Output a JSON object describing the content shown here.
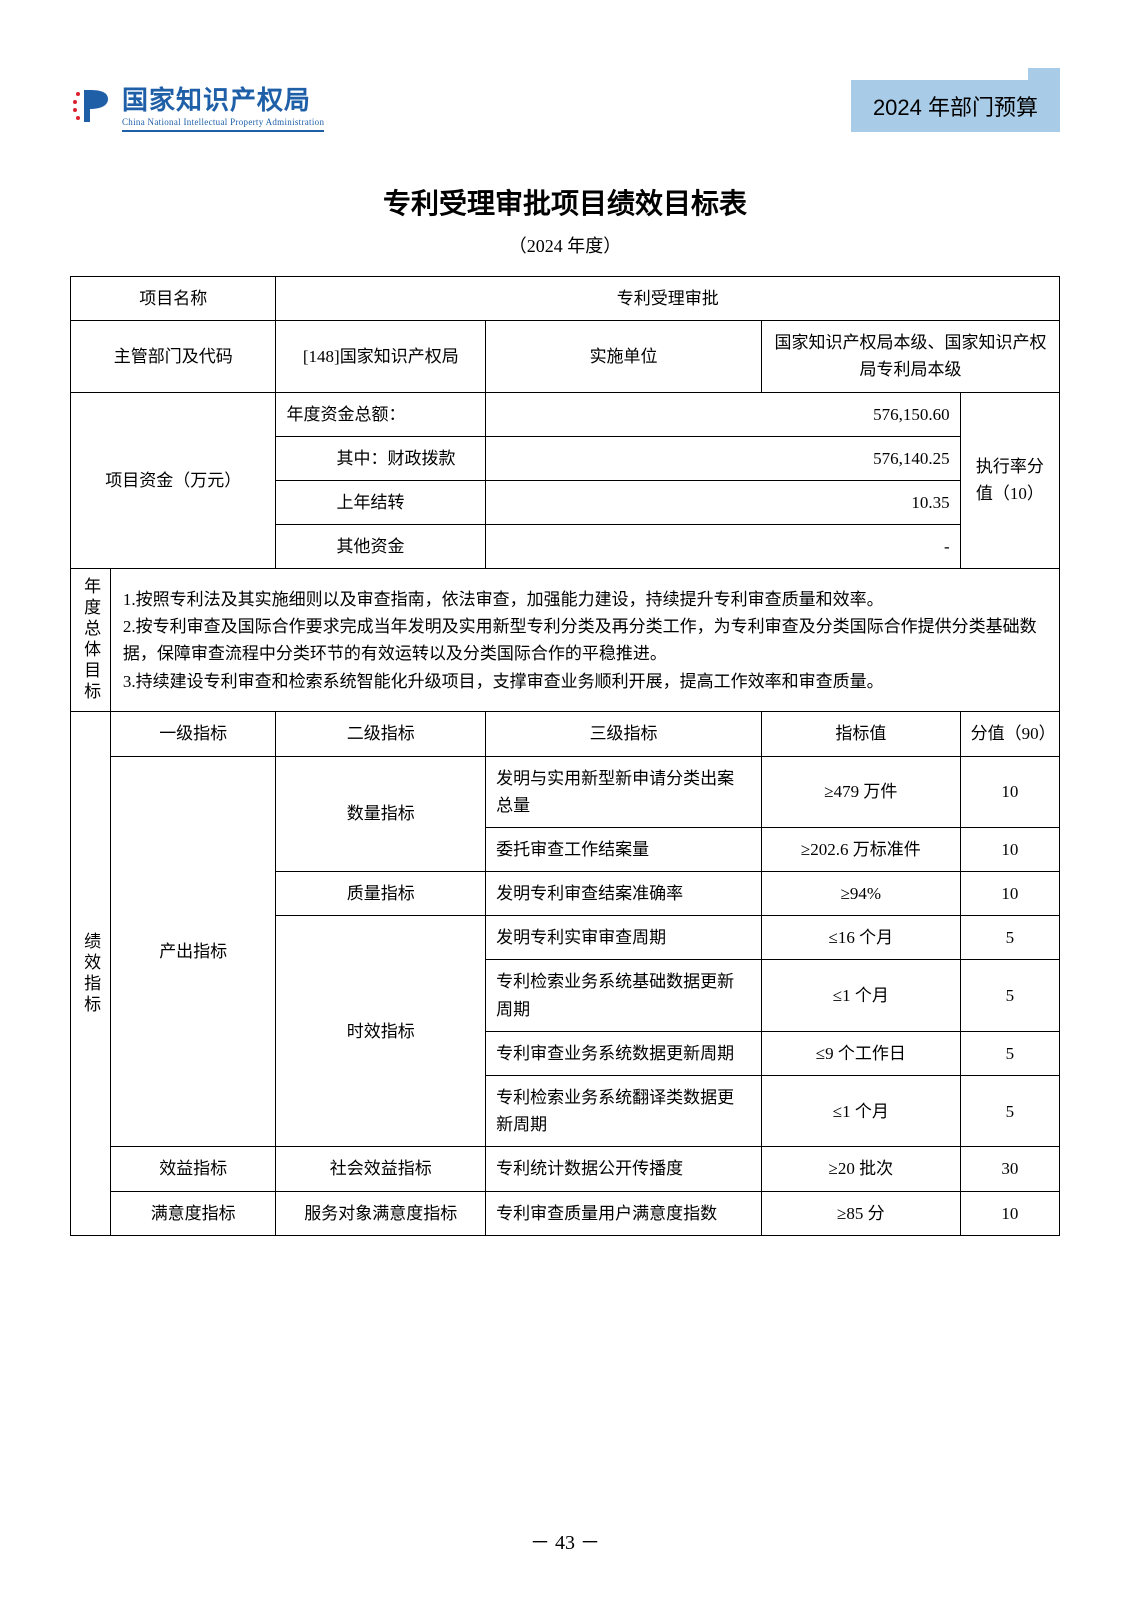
{
  "header": {
    "org_name_cn": "国家知识产权局",
    "org_name_en": "China National Intellectual Property Administration",
    "banner": "2024 年部门预算"
  },
  "title": "专利受理审批项目绩效目标表",
  "subtitle": "（2024 年度）",
  "meta": {
    "project_name_label": "项目名称",
    "project_name_value": "专利受理审批",
    "dept_label": "主管部门及代码",
    "dept_value": "[148]国家知识产权局",
    "impl_label": "实施单位",
    "impl_value": "国家知识产权局本级、国家知识产权局专利局本级"
  },
  "funds": {
    "section_label": "项目资金（万元）",
    "rows": {
      "total_label": "年度资金总额：",
      "total_value": "576,150.60",
      "fiscal_label": "其中：财政拨款",
      "fiscal_value": "576,140.25",
      "carry_label": "上年结转",
      "carry_value": "10.35",
      "other_label": "其他资金",
      "other_value": "-"
    },
    "exec_label": "执行率分值（10）"
  },
  "annual_goal_label": "年度总体目标",
  "annual_goal_text": "1.按照专利法及其实施细则以及审查指南，依法审查，加强能力建设，持续提升专利审查质量和效率。\n2.按专利审查及国际合作要求完成当年发明及实用新型专利分类及再分类工作，为专利审查及分类国际合作提供分类基础数据，保障审查流程中分类环节的有效运转以及分类国际合作的平稳推进。\n3.持续建设专利审查和检索系统智能化升级项目，支撑审查业务顺利开展，提高工作效率和审查质量。",
  "kpi_label": "绩效指标",
  "kpi_headers": {
    "l1": "一级指标",
    "l2": "二级指标",
    "l3": "三级指标",
    "val": "指标值",
    "score": "分值（90）"
  },
  "kpi": {
    "output_label": "产出指标",
    "qty_label": "数量指标",
    "qty_rows": [
      {
        "l3": "发明与实用新型新申请分类出案总量",
        "val": "≥479 万件",
        "score": "10"
      },
      {
        "l3": "委托审查工作结案量",
        "val": "≥202.6 万标准件",
        "score": "10"
      }
    ],
    "quality_label": "质量指标",
    "quality_row": {
      "l3": "发明专利审查结案准确率",
      "val": "≥94%",
      "score": "10"
    },
    "time_label": "时效指标",
    "time_rows": [
      {
        "l3": "发明专利实审审查周期",
        "val": "≤16 个月",
        "score": "5"
      },
      {
        "l3": "专利检索业务系统基础数据更新周期",
        "val": "≤1 个月",
        "score": "5"
      },
      {
        "l3": "专利审查业务系统数据更新周期",
        "val": "≤9 个工作日",
        "score": "5"
      },
      {
        "l3": "专利检索业务系统翻译类数据更新周期",
        "val": "≤1 个月",
        "score": "5"
      }
    ],
    "benefit_label": "效益指标",
    "social_label": "社会效益指标",
    "social_row": {
      "l3": "专利统计数据公开传播度",
      "val": "≥20 批次",
      "score": "30"
    },
    "satisfy_label": "满意度指标",
    "satisfy_sub": "服务对象满意度指标",
    "satisfy_row": {
      "l3": "专利审查质量用户满意度指数",
      "val": "≥85 分",
      "score": "10"
    }
  },
  "page_num": "－ 43 －",
  "colors": {
    "brand_blue": "#1e5fa8",
    "banner_bg": "#a8cce8",
    "star_red": "#d9232e",
    "border": "#000000",
    "text": "#000000",
    "bg": "#ffffff"
  }
}
